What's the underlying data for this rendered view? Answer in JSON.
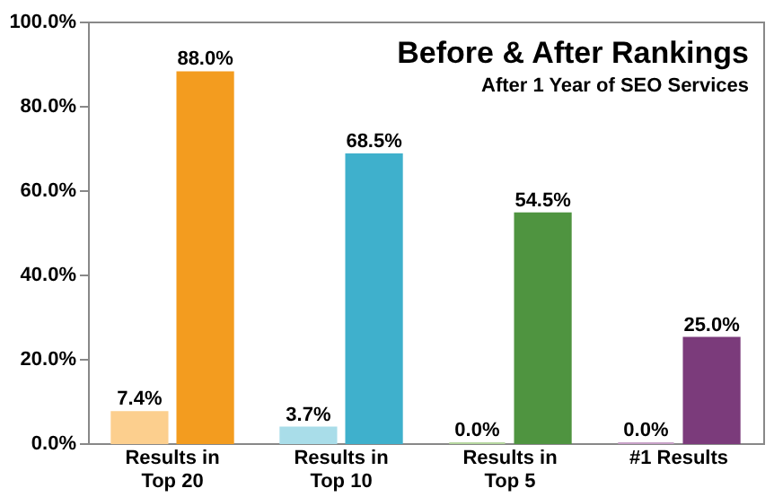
{
  "chart_data": {
    "type": "bar",
    "title": "Before & After Rankings",
    "subtitle": "After 1 Year of SEO Services",
    "categories": [
      "Results in Top 20",
      "Results in Top 10",
      "Results in Top 5",
      "#1 Results"
    ],
    "series": [
      {
        "colors": [
          "#fccf8e",
          "#a9dde9",
          "#b6d7a0",
          "#c7a1c7"
        ],
        "values": [
          7.4,
          3.7,
          0,
          0
        ],
        "value_labels": [
          "7.4%",
          "3.7%",
          "0.0%",
          "0.0%"
        ]
      },
      {
        "colors": [
          "#f39c1f",
          "#3fb0cc",
          "#4f9440",
          "#7b3b7b"
        ],
        "values": [
          88,
          68.5,
          54.5,
          25
        ],
        "value_labels": [
          "88.0%",
          "68.5%",
          "54.5%",
          "25.0%"
        ]
      }
    ],
    "ylim": [
      0,
      100
    ],
    "yticks": [
      {
        "value": 0,
        "label": "0.0%"
      },
      {
        "value": 20,
        "label": "20.0%"
      },
      {
        "value": 40,
        "label": "40.0%"
      },
      {
        "value": 60,
        "label": "60.0%"
      },
      {
        "value": 80,
        "label": "80.0%"
      },
      {
        "value": 100,
        "label": "100.0%"
      }
    ],
    "grid": false
  }
}
